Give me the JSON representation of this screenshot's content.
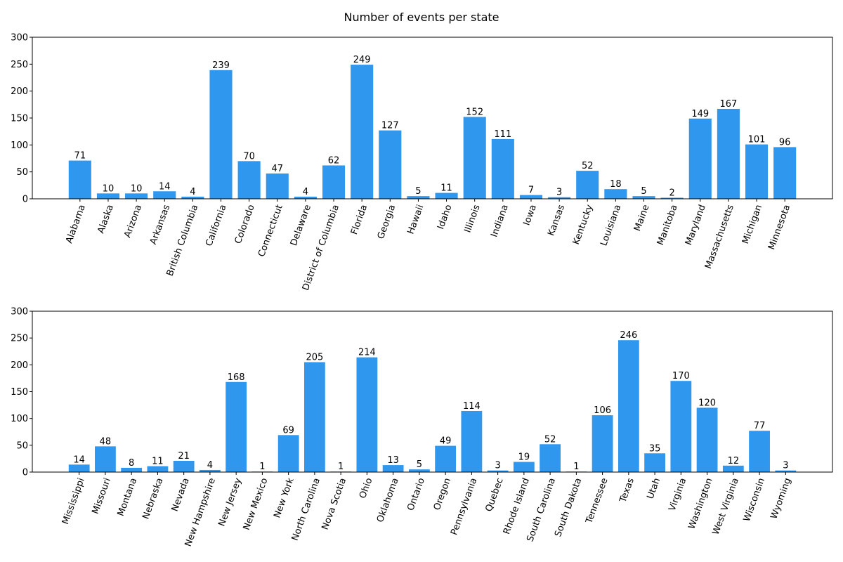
{
  "title": "Number of events per state",
  "bar_color": "#3097ee",
  "chart_data": [
    {
      "type": "bar",
      "title": "",
      "xlabel": "",
      "ylabel": "",
      "ylim": [
        0,
        300
      ],
      "yticks": [
        0,
        50,
        100,
        150,
        200,
        250,
        300
      ],
      "grid": false,
      "categories": [
        "Alabama",
        "Alaska",
        "Arizona",
        "Arkansas",
        "British Columbia",
        "California",
        "Colorado",
        "Connecticut",
        "Delaware",
        "District of Columbia",
        "Florida",
        "Georgia",
        "Hawaii",
        "Idaho",
        "Illinois",
        "Indiana",
        "Iowa",
        "Kansas",
        "Kentucky",
        "Louisiana",
        "Maine",
        "Manitoba",
        "Maryland",
        "Massachusetts",
        "Michigan",
        "Minnesota"
      ],
      "values": [
        71,
        10,
        10,
        14,
        4,
        239,
        70,
        47,
        4,
        62,
        249,
        127,
        5,
        11,
        152,
        111,
        7,
        3,
        52,
        18,
        5,
        2,
        149,
        167,
        101,
        96
      ]
    },
    {
      "type": "bar",
      "title": "",
      "xlabel": "",
      "ylabel": "",
      "ylim": [
        0,
        300
      ],
      "yticks": [
        0,
        50,
        100,
        150,
        200,
        250,
        300
      ],
      "grid": false,
      "categories": [
        "Mississippi",
        "Missouri",
        "Montana",
        "Nebraska",
        "Nevada",
        "New Hampshire",
        "New Jersey",
        "New Mexico",
        "New York",
        "North Carolina",
        "Nova Scotia",
        "Ohio",
        "Oklahoma",
        "Ontario",
        "Oregon",
        "Pennsylvania",
        "Quebec",
        "Rhode Island",
        "South Carolina",
        "South Dakota",
        "Tennessee",
        "Texas",
        "Utah",
        "Virginia",
        "Washington",
        "West Virginia",
        "Wisconsin",
        "Wyoming"
      ],
      "values": [
        14,
        48,
        8,
        11,
        21,
        4,
        168,
        1,
        69,
        205,
        1,
        214,
        13,
        5,
        49,
        114,
        3,
        19,
        52,
        1,
        106,
        246,
        35,
        170,
        120,
        12,
        77,
        3
      ]
    }
  ]
}
